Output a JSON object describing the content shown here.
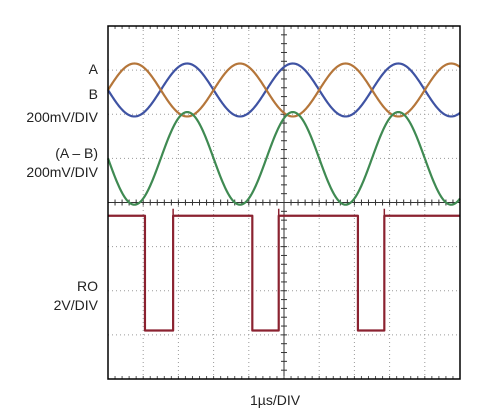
{
  "chart_data": {
    "type": "line",
    "subtype": "oscilloscope-traces",
    "grid": "dotted, 10 horizontal x 8 vertical divisions with center-axis minor ticks",
    "xlabel": "1µs/DIV",
    "x_unit": "µs",
    "x_per_div": 1,
    "xlim": [
      0,
      10
    ],
    "labels": {
      "A": "A",
      "B": "B",
      "ab_scale": "200mV/DIV",
      "diff": "(A – B)",
      "diff_scale": "200mV/DIV",
      "ro": "RO",
      "ro_scale": "2V/DIV"
    },
    "colors": {
      "A": "#3f53a3",
      "B": "#b5763a",
      "diff": "#3f8a52",
      "ro": "#8b2230",
      "grid": "#9a9a9a",
      "frame": "#000000"
    },
    "series": [
      {
        "name": "A",
        "volts_per_div": 0.2,
        "shape": "sine",
        "period_us": 3,
        "peak_to_peak_div": 1.2,
        "x": [
          0,
          0.75,
          1.5,
          2.25,
          3,
          3.75,
          4.5,
          5.25,
          6,
          6.75,
          7.5,
          8.25,
          9,
          9.75,
          10
        ],
        "y_div": [
          0,
          -0.6,
          0,
          0.6,
          0,
          -0.6,
          0,
          0.6,
          0,
          -0.6,
          0,
          0.6,
          0,
          -0.6,
          -0.5
        ]
      },
      {
        "name": "B",
        "volts_per_div": 0.2,
        "shape": "sine",
        "period_us": 3,
        "peak_to_peak_div": 1.2,
        "x": [
          0,
          0.75,
          1.5,
          2.25,
          3,
          3.75,
          4.5,
          5.25,
          6,
          6.75,
          7.5,
          8.25,
          9,
          9.75,
          10
        ],
        "y_div": [
          0,
          0.6,
          0,
          -0.6,
          0,
          0.6,
          0,
          -0.6,
          0,
          0.6,
          0,
          -0.6,
          0,
          0.6,
          0.5
        ]
      },
      {
        "name": "(A – B)",
        "volts_per_div": 0.2,
        "shape": "sine",
        "period_us": 3,
        "peak_to_peak_div": 2.1,
        "x": [
          0,
          0.75,
          1.5,
          2.25,
          3,
          3.75,
          4.5,
          5.25,
          6,
          6.75,
          7.5,
          8.25,
          9,
          9.75,
          10
        ],
        "y_div": [
          0,
          -1.05,
          0,
          1.05,
          0,
          -1.05,
          0,
          1.05,
          0,
          -1.05,
          0,
          1.05,
          0,
          -1.05,
          -0.9
        ]
      },
      {
        "name": "RO",
        "volts_per_div": 2,
        "shape": "digital",
        "high_div": 1.8,
        "low_div": -0.8,
        "transitions_us": [
          {
            "x": 1.05,
            "to": "low"
          },
          {
            "x": 1.85,
            "to": "high"
          },
          {
            "x": 4.1,
            "to": "low"
          },
          {
            "x": 4.85,
            "to": "high"
          },
          {
            "x": 7.1,
            "to": "low"
          },
          {
            "x": 7.85,
            "to": "high"
          }
        ],
        "start_level": "high"
      }
    ]
  }
}
